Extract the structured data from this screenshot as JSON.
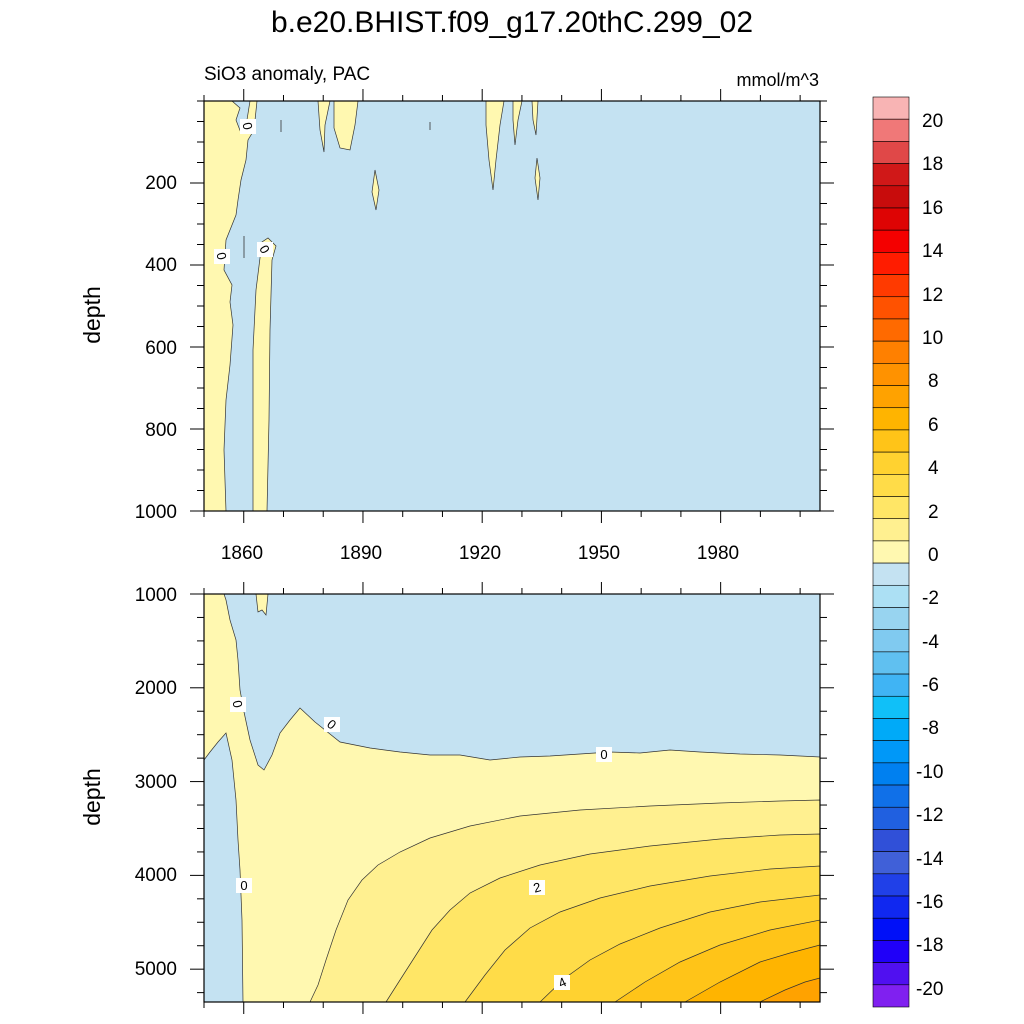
{
  "title": "b.e20.BHIST.f09_g17.20thC.299_02",
  "variable_label": "SiO3 anomaly, PAC",
  "units_label": "mmol/m^3",
  "chart_data": [
    {
      "type": "contour",
      "panel": "upper",
      "xlabel": "",
      "ylabel": "depth",
      "xlim": [
        1850,
        2005
      ],
      "ylim": [
        1000,
        0
      ],
      "x_ticks": [
        1860,
        1890,
        1920,
        1950,
        1980
      ],
      "y_ticks": [
        200,
        400,
        600,
        800,
        1000
      ],
      "contour_labels": [
        "0",
        "0",
        "0"
      ],
      "description_values": "Mostly slightly negative (-1 to 0); positive (0 to 1) slivers near 1850-1868 and thin spikes near surface around 1875-1935"
    },
    {
      "type": "contour",
      "panel": "lower",
      "xlabel": "",
      "ylabel": "depth",
      "xlim": [
        1850,
        2005
      ],
      "ylim": [
        5350,
        1000
      ],
      "x_ticks": [
        1860,
        1890,
        1920,
        1950,
        1980
      ],
      "y_ticks": [
        1000,
        2000,
        3000,
        4000,
        5000
      ],
      "contour_labels": [
        "0",
        "0",
        "0",
        "0",
        "2",
        "4"
      ],
      "zero_contour_depth_1990": 2750,
      "max_value_bottom_right": 5
    },
    {
      "type": "colorbar",
      "levels": [
        -21,
        -20,
        -19,
        -18,
        -17,
        -16,
        -15,
        -14,
        -13,
        -12,
        -11,
        -10,
        -9,
        -8,
        -7,
        -6,
        -5,
        -4,
        -3,
        -2,
        -1,
        0,
        1,
        2,
        3,
        4,
        5,
        6,
        7,
        8,
        9,
        10,
        11,
        12,
        13,
        14,
        15,
        16,
        17,
        18,
        19,
        20,
        21
      ],
      "tick_labels": [
        "20",
        "18",
        "16",
        "14",
        "12",
        "10",
        "8",
        "6",
        "4",
        "2",
        "0",
        "-2",
        "-4",
        "-6",
        "-8",
        "-10",
        "-12",
        "-14",
        "-16",
        "-18",
        "-20"
      ],
      "colors_top_to_bottom": [
        "#f8b4b4",
        "#f07878",
        "#e04848",
        "#d01818",
        "#c80c0c",
        "#de0404",
        "#f40000",
        "#ff1c00",
        "#ff3a00",
        "#ff5200",
        "#ff6a00",
        "#ff8000",
        "#ff9200",
        "#ffa200",
        "#ffb400",
        "#ffc418",
        "#ffd230",
        "#ffdc48",
        "#ffe666",
        "#fff090",
        "#fff8b0",
        "#c4e2f2",
        "#ace0f4",
        "#98d4f0",
        "#80caf0",
        "#60c0f0",
        "#40b4f4",
        "#10c0f8",
        "#00aaf8",
        "#0098f8",
        "#0080f0",
        "#1070e8",
        "#2060e0",
        "#3050d8",
        "#4060d8",
        "#2040e8",
        "#1028f0",
        "#0010f8",
        "#2000f8",
        "#5010f0",
        "#8020f0"
      ]
    }
  ]
}
